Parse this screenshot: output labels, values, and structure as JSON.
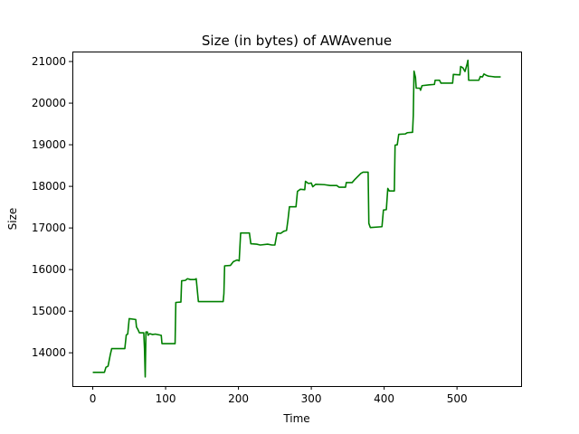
{
  "chart_data": {
    "type": "line",
    "title": "Size (in bytes) of AWAvenue",
    "xlabel": "Time",
    "ylabel": "Size",
    "xlim": [
      -28,
      588
    ],
    "ylim": [
      13200,
      21240
    ],
    "xticks": [
      0,
      100,
      200,
      300,
      400,
      500
    ],
    "yticks": [
      14000,
      15000,
      16000,
      17000,
      18000,
      19000,
      20000,
      21000
    ],
    "grid": false,
    "series": [
      {
        "color": "#008000",
        "points": [
          [
            0,
            13530
          ],
          [
            16,
            13530
          ],
          [
            18,
            13650
          ],
          [
            21,
            13680
          ],
          [
            24,
            13950
          ],
          [
            26,
            14100
          ],
          [
            44,
            14100
          ],
          [
            46,
            14430
          ],
          [
            48,
            14450
          ],
          [
            50,
            14820
          ],
          [
            59,
            14800
          ],
          [
            60,
            14620
          ],
          [
            62,
            14560
          ],
          [
            64,
            14480
          ],
          [
            70,
            14480
          ],
          [
            71,
            14100
          ],
          [
            72,
            13420
          ],
          [
            73,
            14500
          ],
          [
            75,
            14500
          ],
          [
            76,
            14420
          ],
          [
            78,
            14460
          ],
          [
            82,
            14440
          ],
          [
            86,
            14450
          ],
          [
            94,
            14420
          ],
          [
            95,
            14220
          ],
          [
            113,
            14220
          ],
          [
            114,
            15210
          ],
          [
            121,
            15220
          ],
          [
            122,
            15730
          ],
          [
            127,
            15740
          ],
          [
            130,
            15780
          ],
          [
            134,
            15760
          ],
          [
            140,
            15760
          ],
          [
            142,
            15780
          ],
          [
            145,
            15230
          ],
          [
            179,
            15230
          ],
          [
            180,
            15420
          ],
          [
            181,
            16090
          ],
          [
            189,
            16100
          ],
          [
            193,
            16190
          ],
          [
            198,
            16230
          ],
          [
            201,
            16210
          ],
          [
            203,
            16880
          ],
          [
            215,
            16880
          ],
          [
            217,
            16620
          ],
          [
            225,
            16610
          ],
          [
            230,
            16590
          ],
          [
            240,
            16610
          ],
          [
            246,
            16590
          ],
          [
            250,
            16590
          ],
          [
            253,
            16880
          ],
          [
            258,
            16870
          ],
          [
            262,
            16920
          ],
          [
            266,
            16940
          ],
          [
            268,
            17200
          ],
          [
            270,
            17510
          ],
          [
            279,
            17510
          ],
          [
            281,
            17880
          ],
          [
            285,
            17930
          ],
          [
            291,
            17920
          ],
          [
            292,
            18120
          ],
          [
            296,
            18070
          ],
          [
            300,
            18080
          ],
          [
            302,
            17990
          ],
          [
            306,
            18050
          ],
          [
            318,
            18040
          ],
          [
            326,
            18020
          ],
          [
            335,
            18020
          ],
          [
            338,
            17980
          ],
          [
            347,
            17980
          ],
          [
            348,
            18090
          ],
          [
            356,
            18090
          ],
          [
            360,
            18170
          ],
          [
            364,
            18240
          ],
          [
            368,
            18310
          ],
          [
            371,
            18340
          ],
          [
            378,
            18340
          ],
          [
            379,
            17110
          ],
          [
            381,
            17010
          ],
          [
            397,
            17030
          ],
          [
            399,
            17430
          ],
          [
            403,
            17440
          ],
          [
            405,
            17950
          ],
          [
            407,
            17890
          ],
          [
            414,
            17890
          ],
          [
            415,
            18990
          ],
          [
            418,
            19000
          ],
          [
            420,
            19250
          ],
          [
            429,
            19260
          ],
          [
            432,
            19290
          ],
          [
            439,
            19300
          ],
          [
            440,
            19700
          ],
          [
            441,
            20770
          ],
          [
            443,
            20620
          ],
          [
            444,
            20360
          ],
          [
            449,
            20360
          ],
          [
            450,
            20310
          ],
          [
            452,
            20420
          ],
          [
            462,
            20440
          ],
          [
            469,
            20450
          ],
          [
            470,
            20550
          ],
          [
            476,
            20550
          ],
          [
            478,
            20480
          ],
          [
            494,
            20480
          ],
          [
            495,
            20690
          ],
          [
            504,
            20680
          ],
          [
            505,
            20880
          ],
          [
            508,
            20850
          ],
          [
            511,
            20760
          ],
          [
            514,
            20950
          ],
          [
            515,
            21030
          ],
          [
            516,
            20550
          ],
          [
            530,
            20550
          ],
          [
            532,
            20640
          ],
          [
            535,
            20630
          ],
          [
            537,
            20700
          ],
          [
            540,
            20670
          ],
          [
            543,
            20650
          ],
          [
            548,
            20640
          ],
          [
            552,
            20630
          ],
          [
            560,
            20630
          ]
        ]
      }
    ]
  }
}
